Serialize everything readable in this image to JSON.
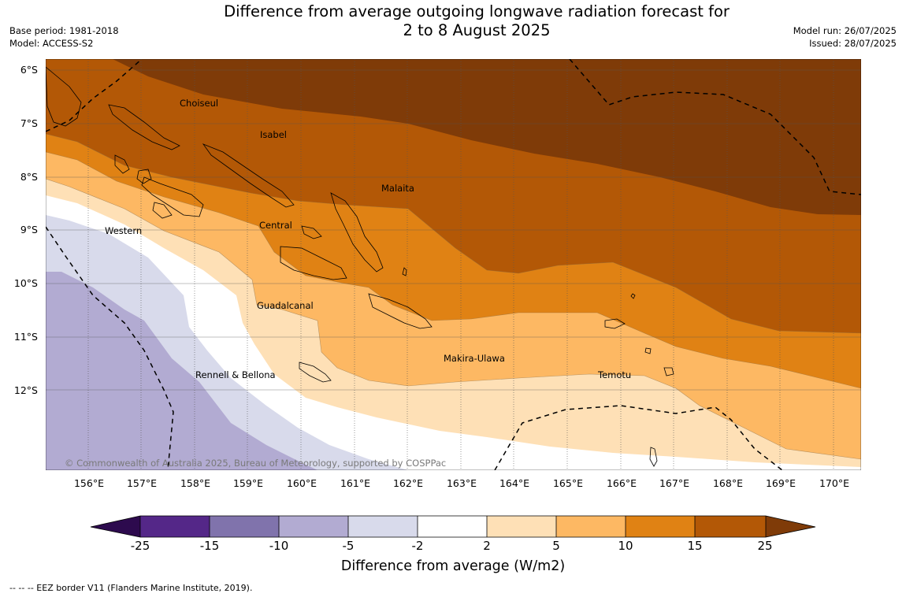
{
  "title_line1": "Difference from average outgoing longwave radiation forecast for",
  "title_line2": "2 to 8 August 2025",
  "base_period": "Base period: 1981-2018",
  "model": "Model: ACCESS-S2",
  "model_run": "Model run: 26/07/2025",
  "issued": "Issued: 28/07/2025",
  "latitudes": [
    "6°S",
    "7°S",
    "8°S",
    "9°S",
    "10°S",
    "11°S",
    "12°S"
  ],
  "longitudes": [
    "156°E",
    "157°E",
    "158°E",
    "159°E",
    "160°E",
    "161°E",
    "162°E",
    "163°E",
    "164°E",
    "165°E",
    "166°E",
    "167°E",
    "168°E",
    "169°E",
    "170°E"
  ],
  "provinces": [
    "Choiseul",
    "Isabel",
    "Malaita",
    "Central",
    "Western",
    "Guadalcanal",
    "Makira-Ulawa",
    "Rennell & Bellona",
    "Temotu"
  ],
  "copyright": "© Commonwealth of Australia 2025, Bureau of Meteorology, supported by COSPPac",
  "colorbar": {
    "ticks": [
      "-25",
      "-15",
      "-10",
      "-5",
      "-2",
      "2",
      "5",
      "10",
      "15",
      "25"
    ],
    "label": "Difference from average (W/m2)",
    "colors": {
      "below_min": "#2d0a4e",
      "m25_m15": "#542788",
      "m15_m10": "#8073ac",
      "m10_m5": "#b2abd2",
      "m5_m2": "#d8daeb",
      "m2_p2": "#ffffff",
      "p2_p5": "#fee0b6",
      "p5_p10": "#fdb863",
      "p10_p15": "#e08214",
      "p15_p25": "#b35806",
      "above_max": "#7f3b08"
    }
  },
  "footnote": "--  --  -- EEZ border V11 (Flanders Marine Institute, 2019)."
}
